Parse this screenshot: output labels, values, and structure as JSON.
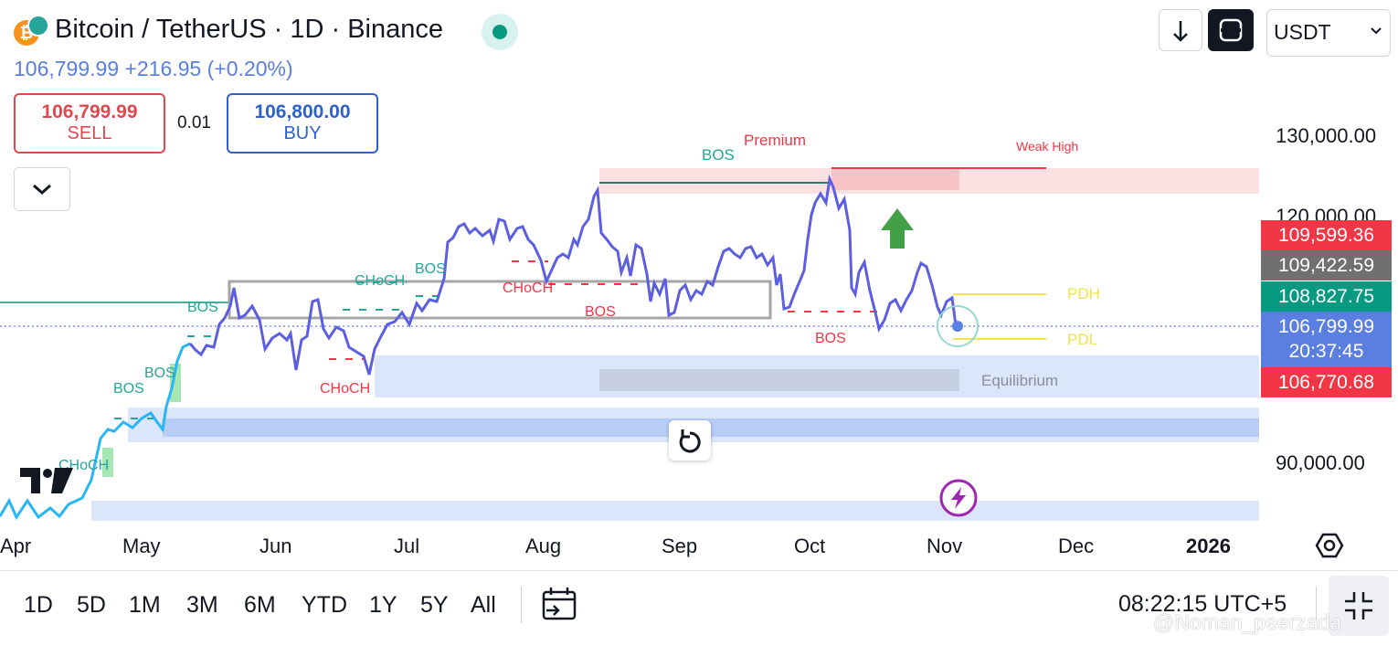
{
  "header": {
    "title": "Bitcoin / TetherUS · 1D · Binance",
    "price_line": "106,799.99  +216.95 (+0.20%)",
    "currency": "USDT",
    "logo_letter": "₿"
  },
  "trade": {
    "sell_price": "106,799.99",
    "sell_label": "SELL",
    "spread": "0.01",
    "buy_price": "106,800.00",
    "buy_label": "BUY"
  },
  "price_axis": {
    "labels": [
      "130,000.00",
      "120,000.00",
      "90,000.00"
    ],
    "tags": [
      {
        "text": "109,599.36",
        "color": "#f23645"
      },
      {
        "text": "109,422.59",
        "color": "#707070"
      },
      {
        "text": "108,827.75",
        "color": "#089981"
      },
      {
        "text": "106,799.99",
        "color": "#5b7fe0"
      },
      {
        "text": "20:37:45",
        "color": "#5b7fe0"
      },
      {
        "text": "106,770.68",
        "color": "#f23645"
      }
    ]
  },
  "time_axis": [
    "Apr",
    "May",
    "Jun",
    "Jul",
    "Aug",
    "Sep",
    "Oct",
    "Nov",
    "Dec",
    "2026"
  ],
  "annotations": {
    "premium": "Premium",
    "weak_high": "Weak High",
    "equilibrium": "Equilibrium",
    "pdh": "PDH",
    "pdl": "PDL",
    "bos": "BOS",
    "choch": "CHoCH"
  },
  "bottom": {
    "ranges": [
      "1D",
      "5D",
      "1M",
      "3M",
      "6M",
      "YTD",
      "1Y",
      "5Y",
      "All"
    ],
    "clock": "08:22:15 UTC+5",
    "watermark": "@Noman_peerzada"
  },
  "colors": {
    "line": "#5b5fe0",
    "up": "#089981",
    "down": "#f23645",
    "accent": "#2962ff"
  }
}
